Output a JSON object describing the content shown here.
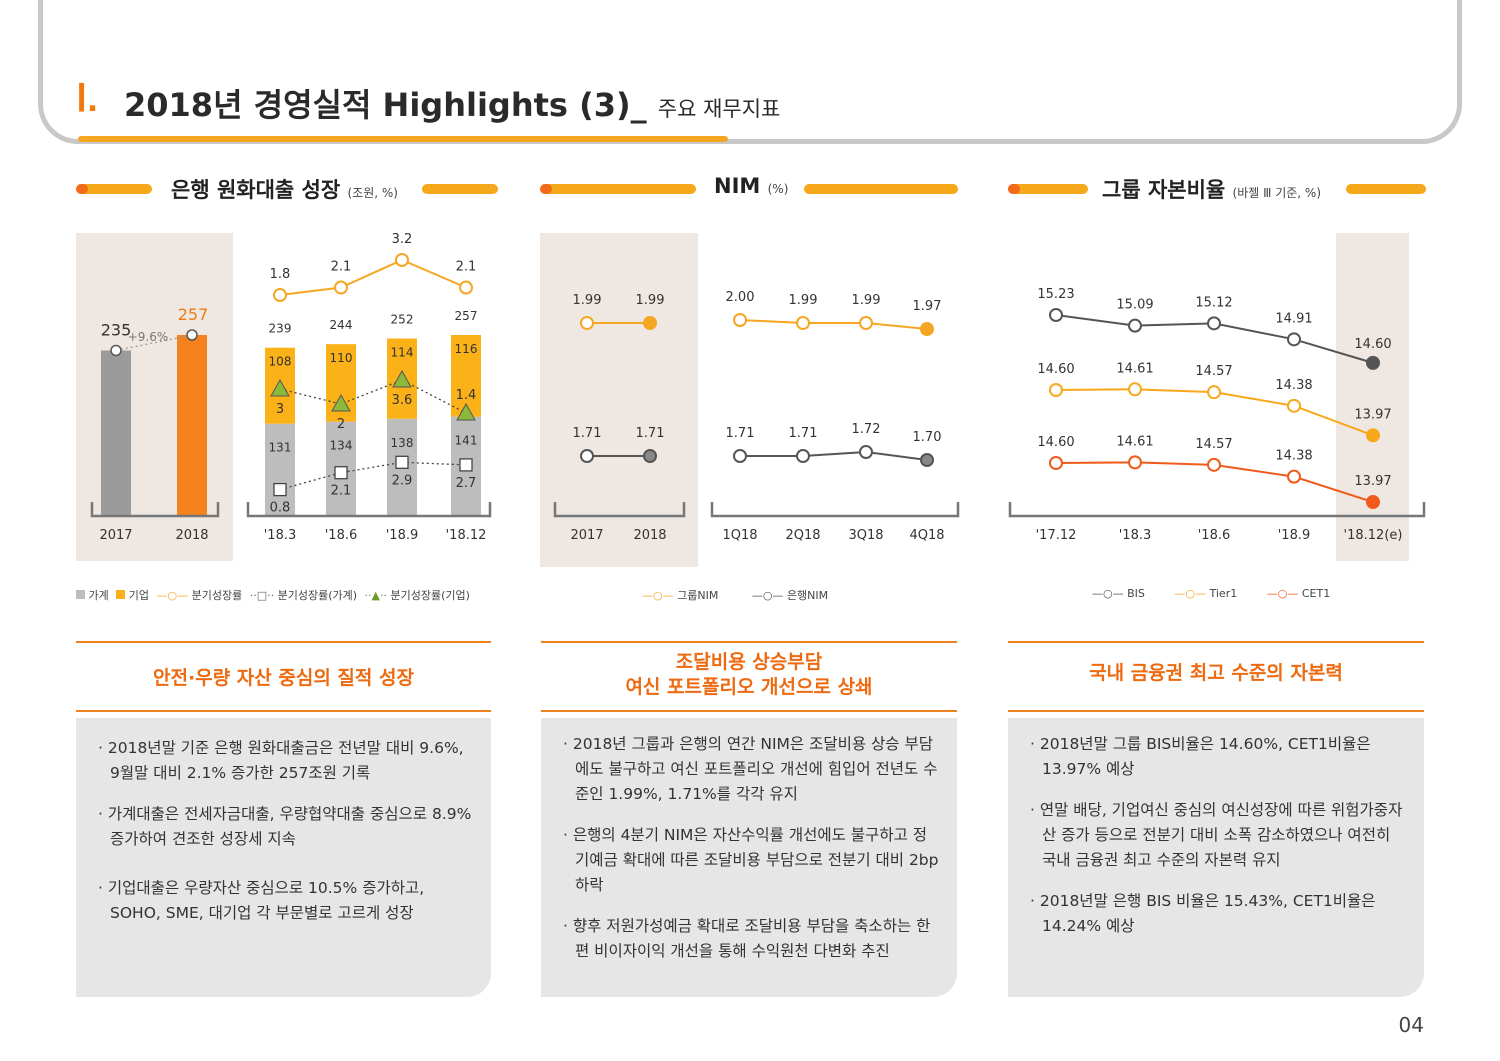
{
  "header": {
    "numeral": "Ⅰ.",
    "title": "2018년 경영실적 Highlights (3)_",
    "subtitle": "주요 재무지표"
  },
  "sections": [
    {
      "title": "은행 원화대출 성장",
      "unit": "(조원, %)",
      "headline": [
        "안전·우량 자산 중심의 질적 성장"
      ],
      "bullets": [
        "2018년말 기준 은행 원화대출금은 전년말 대비 9.6%, 9월말 대비 2.1% 증가한 257조원 기록",
        "가계대출은 전세자금대출, 우량협약대출 중심으로 8.9% 증가하여 견조한 성장세 지속",
        "기업대출은 우량자산 중심으로 10.5% 증가하고, SOHO, SME, 대기업 각 부문별로 고르게 성장"
      ]
    },
    {
      "title": "NIM",
      "unit": "(%)",
      "headline": [
        "조달비용 상승부담",
        "여신 포트폴리오 개선으로 상쇄"
      ],
      "bullets": [
        "2018년 그룹과 은행의 연간 NIM은 조달비용 상승 부담에도 불구하고  여신 포트폴리오 개선에 힘입어 전년도 수준인 1.99%, 1.71%를 각각 유지",
        "은행의 4분기 NIM은 자산수익률 개선에도 불구하고 정기예금 확대에 따른 조달비용 부담으로 전분기 대비 2bp 하락",
        "향후 저원가성예금 확대로 조달비용 부담을 축소하는 한편 비이자이익 개선을 통해 수익원천 다변화 추진"
      ]
    },
    {
      "title": "그룹 자본비율",
      "unit": "(바젤 Ⅲ 기준, %)",
      "headline": [
        "국내 금융권 최고 수준의 자본력"
      ],
      "bullets": [
        "2018년말 그룹 BIS비율은 14.60%, CET1비율은 13.97% 예상",
        "연말 배당, 기업여신 중심의 여신성장에 따른 위험가중자산 증가 등으로 전분기 대비 소폭 감소하였으나 여전히 국내 금융권 최고 수준의 자본력 유지",
        "2018년말 은행 BIS 비율은 15.43%, CET1비율은 14.24% 예상"
      ]
    }
  ],
  "chart_data": [
    {
      "type": "bar",
      "subtitle": "annual",
      "categories": [
        "2017",
        "2018"
      ],
      "values": [
        235,
        257
      ],
      "growth_label": "+9.6%",
      "colors": [
        "#9b9b9b",
        "#f5821f"
      ]
    },
    {
      "type": "bar",
      "stacked": true,
      "categories": [
        "'18.3",
        "'18.6",
        "'18.9",
        "'18.12"
      ],
      "series": [
        {
          "name": "가계",
          "values": [
            131,
            134,
            138,
            141
          ],
          "color": "#bdbdbd"
        },
        {
          "name": "기업",
          "values": [
            108,
            110,
            114,
            116
          ],
          "color": "#fbb219"
        }
      ],
      "totals": [
        239,
        244,
        252,
        257
      ],
      "lines": [
        {
          "name": "분기성장률",
          "values": [
            1.8,
            2.1,
            3.2,
            2.1
          ]
        },
        {
          "name": "분기성장률(가계)",
          "values": [
            0.8,
            2.1,
            2.9,
            2.7
          ]
        },
        {
          "name": "분기성장률(기업)",
          "values": [
            3.0,
            2.0,
            3.6,
            1.4
          ]
        }
      ],
      "legend": [
        "가계",
        "기업",
        "분기성장률",
        "분기성장률(가계)",
        "분기성장률(기업)"
      ]
    },
    {
      "type": "line",
      "categories": [
        "2017",
        "2018"
      ],
      "series": [
        {
          "name": "그룹NIM",
          "values": [
            1.99,
            1.99
          ]
        },
        {
          "name": "은행NIM",
          "values": [
            1.71,
            1.71
          ]
        }
      ]
    },
    {
      "type": "line",
      "categories": [
        "1Q18",
        "2Q18",
        "3Q18",
        "4Q18"
      ],
      "series": [
        {
          "name": "그룹NIM",
          "values": [
            2.0,
            1.99,
            1.99,
            1.97
          ]
        },
        {
          "name": "은행NIM",
          "values": [
            1.71,
            1.71,
            1.72,
            1.7
          ]
        }
      ],
      "legend": [
        "그룹NIM",
        "은행NIM"
      ]
    },
    {
      "type": "line",
      "categories": [
        "'17.12",
        "'18.3",
        "'18.6",
        "'18.9",
        "'18.12(e)"
      ],
      "series": [
        {
          "name": "BIS",
          "values": [
            15.23,
            15.09,
            15.12,
            14.91,
            14.6
          ],
          "color": "#555555"
        },
        {
          "name": "Tier1",
          "values": [
            14.6,
            14.61,
            14.57,
            14.38,
            13.97
          ],
          "color": "#f7a81b"
        },
        {
          "name": "CET1",
          "values": [
            14.6,
            14.61,
            14.57,
            14.38,
            13.97
          ],
          "color": "#f05a1a"
        }
      ],
      "legend": [
        "BIS",
        "Tier1",
        "CET1"
      ]
    }
  ],
  "page_number": "04"
}
